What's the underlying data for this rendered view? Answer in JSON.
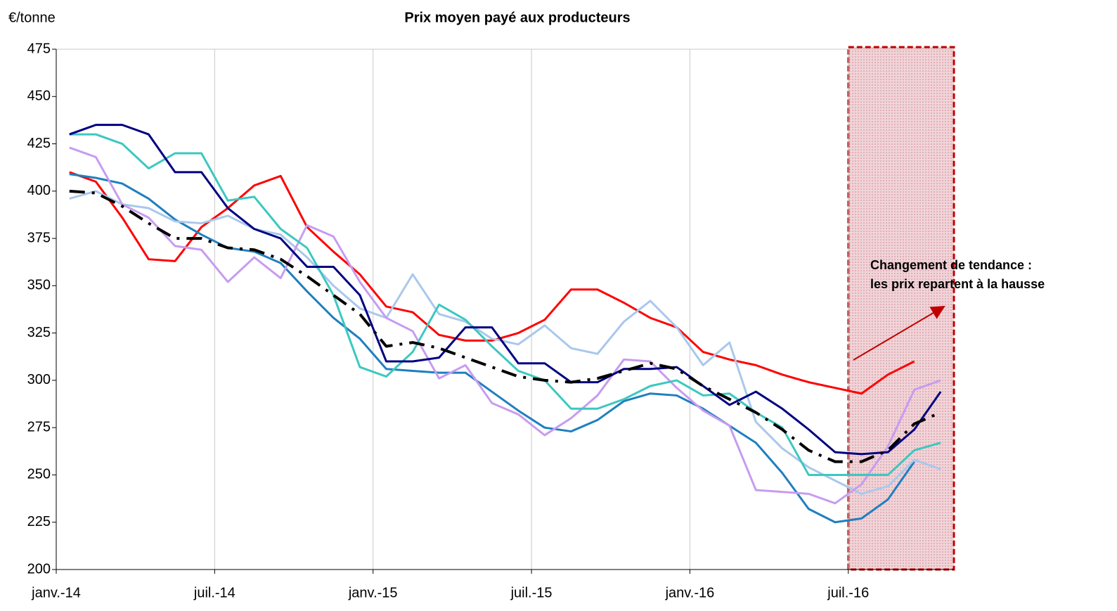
{
  "chart_data": {
    "type": "line",
    "title": "Prix moyen payé aux producteurs",
    "y_label": "€/tonne",
    "annotation": [
      "Changement de tendance :",
      "les prix repartent à la hausse"
    ],
    "x": [
      0.5,
      1.5,
      2.5,
      3.5,
      4.5,
      5.5,
      6.5,
      7.5,
      8.5,
      9.5,
      10.5,
      11.5,
      12.5,
      13.5,
      14.5,
      15.5,
      16.5,
      17.5,
      18.5,
      19.5,
      20.5,
      21.5,
      22.5,
      23.5,
      24.5,
      25.5,
      26.5,
      27.5,
      28.5,
      29.5,
      30.5,
      31.5,
      32.5,
      33.5
    ],
    "xlim": [
      0,
      34
    ],
    "xticks": [
      {
        "value": 0,
        "label": "janv.-14"
      },
      {
        "value": 6,
        "label": "juil.-14"
      },
      {
        "value": 12,
        "label": "janv.-15"
      },
      {
        "value": 18,
        "label": "juil.-15"
      },
      {
        "value": 24,
        "label": "janv.-16"
      },
      {
        "value": 30,
        "label": "juil.-16"
      }
    ],
    "ylim": [
      200,
      475
    ],
    "yticks": [
      200,
      225,
      250,
      275,
      300,
      325,
      350,
      375,
      400,
      425,
      450,
      475
    ],
    "grid": true,
    "shaded_xlim": [
      30,
      34
    ],
    "series": [
      {
        "color": "#ff0000",
        "values": [
          410,
          405,
          386,
          364,
          363,
          381,
          391,
          403,
          408,
          381,
          368,
          356,
          339,
          336,
          324,
          321,
          321,
          325,
          332,
          348,
          348,
          341,
          333,
          328,
          315,
          311,
          308,
          303,
          299,
          296,
          293,
          303,
          310,
          null
        ]
      },
      {
        "color": "#1f7fbf",
        "values": [
          409,
          407,
          404,
          396,
          385,
          377,
          370,
          368,
          362,
          347,
          333,
          322,
          306,
          305,
          304,
          304,
          294,
          284,
          275,
          273,
          279,
          289,
          293,
          292,
          285,
          276,
          267,
          251,
          232,
          225,
          227,
          237,
          257,
          null
        ]
      },
      {
        "color": "#a9c8ec",
        "values": [
          396,
          400,
          393,
          391,
          384,
          383,
          387,
          380,
          377,
          365,
          350,
          338,
          333,
          356,
          335,
          331,
          322,
          319,
          329,
          317,
          314,
          331,
          342,
          328,
          308,
          320,
          278,
          264,
          254,
          247,
          240,
          244,
          258,
          253
        ]
      },
      {
        "color": "#c79cf0",
        "values": [
          423,
          418,
          393,
          386,
          371,
          369,
          352,
          365,
          354,
          382,
          376,
          352,
          333,
          326,
          301,
          308,
          288,
          282,
          271,
          280,
          292,
          311,
          310,
          296,
          284,
          276,
          242,
          241,
          240,
          235,
          245,
          265,
          295,
          300
        ]
      },
      {
        "color": "#3cc8c0",
        "values": [
          430,
          430,
          425,
          412,
          420,
          420,
          395,
          397,
          380,
          370,
          345,
          307,
          302,
          315,
          340,
          332,
          318,
          305,
          300,
          285,
          285,
          290,
          297,
          300,
          292,
          293,
          283,
          275,
          250,
          250,
          250,
          250,
          263,
          267
        ]
      },
      {
        "color": "#000080",
        "values": [
          430,
          435,
          435,
          430,
          410,
          410,
          391,
          380,
          375,
          360,
          360,
          345,
          310,
          310,
          312,
          328,
          328,
          309,
          309,
          299,
          299,
          306,
          306,
          307,
          297,
          287,
          294,
          285,
          274,
          262,
          261,
          262,
          274,
          294
        ]
      },
      {
        "color": "#000000",
        "dashed": true,
        "values": [
          400,
          399,
          392,
          383,
          375,
          375,
          370,
          369,
          364,
          355,
          345,
          335,
          318,
          320,
          317,
          312,
          307,
          302,
          300,
          299,
          301,
          305,
          309,
          306,
          297,
          290,
          283,
          274,
          263,
          257,
          257,
          263,
          277,
          283
        ]
      }
    ]
  }
}
